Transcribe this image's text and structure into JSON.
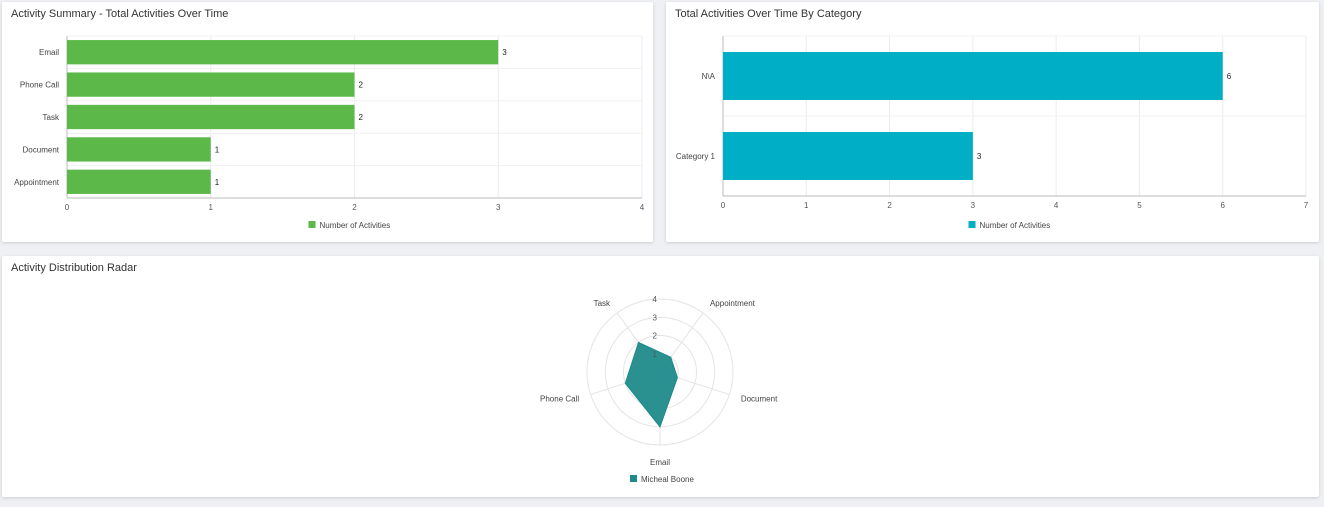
{
  "panels": {
    "summary_title": "Activity Summary - Total Activities Over Time",
    "category_title": "Total Activities Over Time By Category",
    "radar_title": "Activity Distribution Radar"
  },
  "chart_data": [
    {
      "type": "bar",
      "orientation": "horizontal",
      "title": "Activity Summary - Total Activities Over Time",
      "categories": [
        "Email",
        "Phone Call",
        "Task",
        "Document",
        "Appointment"
      ],
      "series": [
        {
          "name": "Number of Activities",
          "values": [
            3,
            2,
            2,
            1,
            1
          ],
          "color": "#5db84a"
        }
      ],
      "xlim": [
        0,
        4
      ],
      "xticks": [
        0,
        1,
        2,
        3,
        4
      ],
      "grid": true,
      "data_labels": true,
      "legend": "bottom"
    },
    {
      "type": "bar",
      "orientation": "horizontal",
      "title": "Total Activities Over Time By Category",
      "categories": [
        "N\\A",
        "Category 1"
      ],
      "series": [
        {
          "name": "Number of Activities",
          "values": [
            6,
            3
          ],
          "color": "#00aec5"
        }
      ],
      "xlim": [
        0,
        7
      ],
      "xticks": [
        0,
        1,
        2,
        3,
        4,
        5,
        6,
        7
      ],
      "grid": true,
      "data_labels": true,
      "legend": "bottom"
    },
    {
      "type": "radar",
      "title": "Activity Distribution Radar",
      "axes": [
        "Appointment",
        "Document",
        "Email",
        "Phone Call",
        "Task"
      ],
      "series": [
        {
          "name": "Micheal Boone",
          "values": [
            1,
            1,
            3,
            2,
            2
          ],
          "color": "#1f8a8a"
        }
      ],
      "rlim": [
        0,
        4
      ],
      "rticks": [
        1,
        2,
        3,
        4
      ],
      "legend": "bottom"
    }
  ]
}
